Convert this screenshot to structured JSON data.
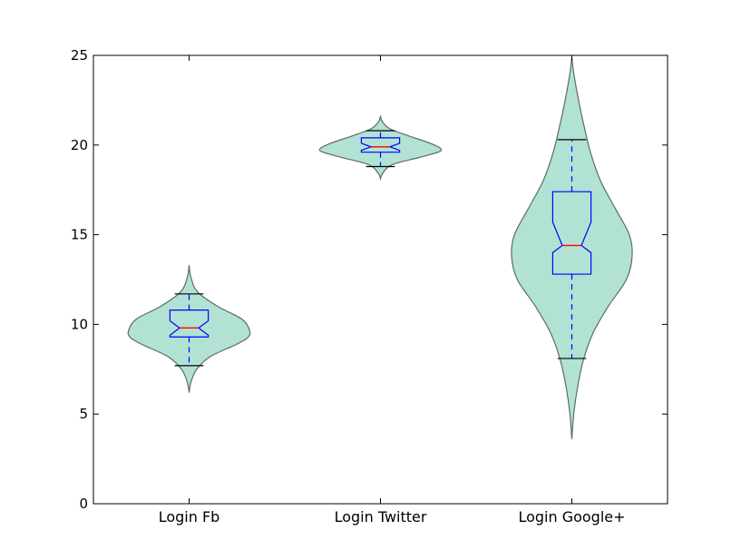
{
  "chart_data": {
    "type": "violin",
    "categories": [
      "Login Fb",
      "Login Twitter",
      "Login Google+"
    ],
    "ylim": [
      0,
      25
    ],
    "yticks": [
      0,
      5,
      10,
      15,
      20,
      25
    ],
    "ytick_labels": [
      "0",
      "5",
      "10",
      "15",
      "20",
      "25"
    ],
    "grid": false,
    "title": "",
    "xlabel": "",
    "ylabel": "",
    "colors": {
      "violin_fill": "#b2e2d4",
      "violin_edge": "#5a6e64",
      "box": "#0000ff",
      "median": "#ff0000",
      "cap": "#000000"
    },
    "series": [
      {
        "category": "Login Fb",
        "box": {
          "whisker_low": 7.7,
          "q1": 9.3,
          "notch_low": 9.4,
          "median": 9.8,
          "notch_high": 10.2,
          "q3": 10.8,
          "whisker_high": 11.7
        },
        "violin": [
          {
            "y": 6.2,
            "w": 0.0
          },
          {
            "y": 6.8,
            "w": 0.02
          },
          {
            "y": 7.5,
            "w": 0.08
          },
          {
            "y": 8.2,
            "w": 0.22
          },
          {
            "y": 8.9,
            "w": 0.5
          },
          {
            "y": 9.3,
            "w": 0.62
          },
          {
            "y": 9.7,
            "w": 0.63
          },
          {
            "y": 10.3,
            "w": 0.55
          },
          {
            "y": 11.0,
            "w": 0.3
          },
          {
            "y": 11.8,
            "w": 0.09
          },
          {
            "y": 12.6,
            "w": 0.02
          },
          {
            "y": 13.3,
            "w": 0.0
          }
        ]
      },
      {
        "category": "Login Twitter",
        "box": {
          "whisker_low": 18.8,
          "q1": 19.6,
          "notch_low": 19.7,
          "median": 19.9,
          "notch_high": 20.1,
          "q3": 20.4,
          "whisker_high": 20.8
        },
        "violin": [
          {
            "y": 18.1,
            "w": 0.0
          },
          {
            "y": 18.4,
            "w": 0.02
          },
          {
            "y": 18.9,
            "w": 0.12
          },
          {
            "y": 19.3,
            "w": 0.4
          },
          {
            "y": 19.6,
            "w": 0.6
          },
          {
            "y": 19.8,
            "w": 0.63
          },
          {
            "y": 20.1,
            "w": 0.52
          },
          {
            "y": 20.5,
            "w": 0.3
          },
          {
            "y": 20.9,
            "w": 0.1
          },
          {
            "y": 21.3,
            "w": 0.02
          },
          {
            "y": 21.6,
            "w": 0.0
          }
        ]
      },
      {
        "category": "Login Google+",
        "box": {
          "whisker_low": 8.1,
          "q1": 12.8,
          "notch_low": 14.0,
          "median": 14.4,
          "notch_high": 15.7,
          "q3": 17.4,
          "whisker_high": 20.3
        },
        "violin": [
          {
            "y": 3.6,
            "w": 0.0
          },
          {
            "y": 5.0,
            "w": 0.02
          },
          {
            "y": 6.5,
            "w": 0.06
          },
          {
            "y": 8.0,
            "w": 0.12
          },
          {
            "y": 9.5,
            "w": 0.22
          },
          {
            "y": 11.0,
            "w": 0.38
          },
          {
            "y": 12.5,
            "w": 0.57
          },
          {
            "y": 13.8,
            "w": 0.63
          },
          {
            "y": 15.0,
            "w": 0.6
          },
          {
            "y": 16.5,
            "w": 0.45
          },
          {
            "y": 18.0,
            "w": 0.3
          },
          {
            "y": 19.5,
            "w": 0.2
          },
          {
            "y": 21.0,
            "w": 0.13
          },
          {
            "y": 22.5,
            "w": 0.07
          },
          {
            "y": 24.0,
            "w": 0.02
          },
          {
            "y": 24.9,
            "w": 0.0
          }
        ]
      }
    ]
  }
}
